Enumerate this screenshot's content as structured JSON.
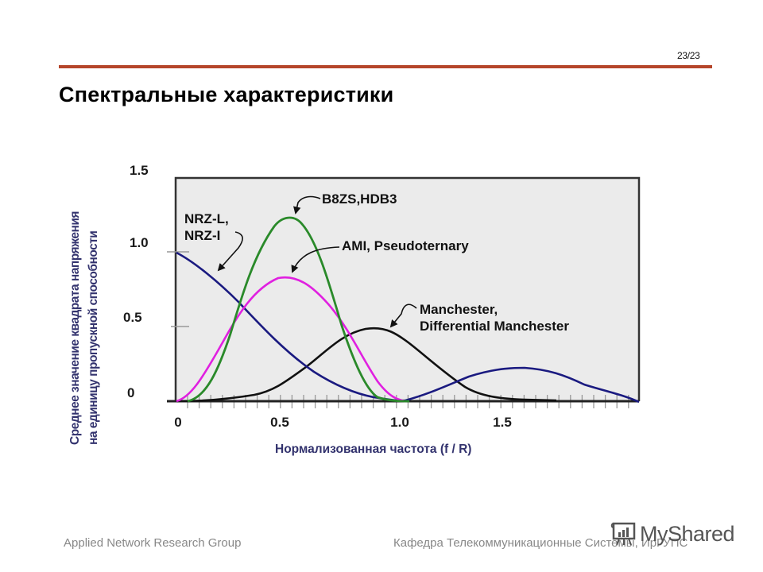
{
  "slide": {
    "page_number": "23/23",
    "title": "Спектральные характеристики",
    "footer_left": "Applied Network Research Group",
    "footer_right": "Кафедра Телекоммуникационные Системы, ИрГУПС",
    "watermark": "MyShared",
    "rule_color": "#b5452a"
  },
  "chart_data": {
    "type": "line",
    "title": "",
    "xlabel": "Нормализованная частота (f / R)",
    "ylabel": [
      "Среднее значение квадрата напряжения",
      "на единицу пропускной способности"
    ],
    "xlim": [
      0,
      2.0
    ],
    "ylim": [
      0,
      1.5
    ],
    "x_ticks": [
      "0",
      "0.5",
      "1.0",
      "1.5"
    ],
    "y_ticks": [
      "0",
      "0.5",
      "1.0",
      "1.5"
    ],
    "grid": false,
    "background": "#ebebeb",
    "x": [
      0,
      0.1,
      0.2,
      0.3,
      0.4,
      0.5,
      0.6,
      0.7,
      0.8,
      0.9,
      1.0,
      1.1,
      1.2,
      1.3,
      1.4,
      1.5,
      1.6,
      1.7,
      1.8,
      1.9,
      2.0
    ],
    "series": [
      {
        "name": "NRZ-L, NRZ-I",
        "color": "#1a1a80",
        "values": [
          1.0,
          0.92,
          0.8,
          0.66,
          0.52,
          0.38,
          0.25,
          0.14,
          0.07,
          0.02,
          0.0,
          0.03,
          0.1,
          0.17,
          0.21,
          0.22,
          0.2,
          0.14,
          0.08,
          0.04,
          0.0
        ]
      },
      {
        "name": "AMI, Pseudoternary",
        "color": "#e020e0",
        "values": [
          0.0,
          0.15,
          0.4,
          0.66,
          0.81,
          0.83,
          0.73,
          0.54,
          0.31,
          0.12,
          0.02,
          0.0,
          0.0,
          0.0,
          0.0,
          0.0,
          0.0,
          0.0,
          0.0,
          0.0,
          0.0
        ]
      },
      {
        "name": "B8ZS, HDB3",
        "color": "#2a8a2a",
        "values": [
          0.0,
          0.08,
          0.38,
          0.85,
          1.15,
          1.23,
          1.0,
          0.6,
          0.25,
          0.06,
          0.0,
          0.0,
          0.0,
          0.0,
          0.0,
          0.0,
          0.0,
          0.0,
          0.0,
          0.0,
          0.0
        ]
      },
      {
        "name": "Manchester, Differential Manchester",
        "color": "#111111",
        "values": [
          0.0,
          0.0,
          0.02,
          0.05,
          0.12,
          0.22,
          0.34,
          0.43,
          0.48,
          0.48,
          0.42,
          0.3,
          0.18,
          0.08,
          0.03,
          0.01,
          0.0,
          0.0,
          null,
          null,
          null
        ]
      }
    ],
    "annotations": [
      {
        "text": [
          "NRZ-L,",
          "NRZ-I"
        ],
        "target_series": "NRZ-L, NRZ-I"
      },
      {
        "text": [
          "B8ZS,HDB3"
        ],
        "target_series": "B8ZS, HDB3"
      },
      {
        "text": [
          "AMI, Pseudoternary"
        ],
        "target_series": "AMI, Pseudoternary"
      },
      {
        "text": [
          "Manchester,",
          "Differential Manchester"
        ],
        "target_series": "Manchester, Differential Manchester"
      }
    ]
  }
}
